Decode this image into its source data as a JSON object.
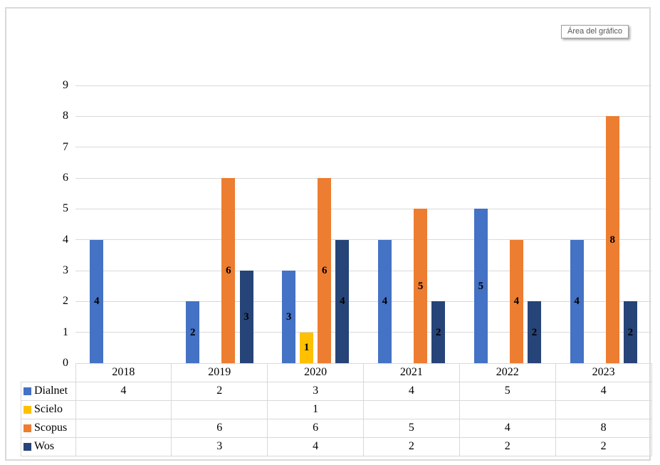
{
  "tooltip": {
    "label": "Área del gráfico"
  },
  "chart_data": {
    "type": "bar",
    "title": "",
    "xlabel": "",
    "ylabel": "",
    "categories": [
      "2018",
      "2019",
      "2020",
      "2021",
      "2022",
      "2023"
    ],
    "series": [
      {
        "name": "Dialnet",
        "color": "#4472C4",
        "values": [
          4,
          2,
          3,
          4,
          5,
          4
        ]
      },
      {
        "name": "Scielo",
        "color": "#FFC000",
        "values": [
          null,
          null,
          1,
          null,
          null,
          null
        ]
      },
      {
        "name": "Scopus",
        "color": "#ED7D31",
        "values": [
          null,
          6,
          6,
          5,
          4,
          8
        ]
      },
      {
        "name": "Wos",
        "color": "#264478",
        "values": [
          null,
          3,
          4,
          2,
          2,
          2
        ]
      }
    ],
    "ylim": [
      0,
      9
    ],
    "ytick_step": 1,
    "grid": true,
    "data_labels": "center",
    "legend_position": "data-table-left",
    "colors": {
      "gridline": "#d9d9d9",
      "table_border": "#d9d9d9",
      "label_text": "#000000"
    }
  }
}
